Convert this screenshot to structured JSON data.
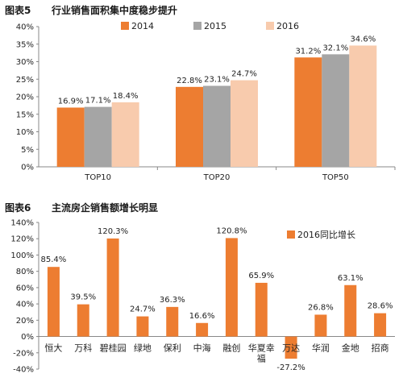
{
  "figures": [
    {
      "number": "图表5",
      "title": "行业销售面积集中度稳步提升"
    },
    {
      "number": "图表6",
      "title": "主流房企销售额增长明显"
    }
  ],
  "chart_data": [
    {
      "type": "bar",
      "categories": [
        "TOP10",
        "TOP20",
        "TOP50"
      ],
      "series": [
        {
          "name": "2014",
          "color": "#ed7d31",
          "values": [
            16.9,
            22.8,
            31.2
          ],
          "labels": [
            "16.9%",
            "22.8%",
            "31.2%"
          ]
        },
        {
          "name": "2015",
          "color": "#a5a5a5",
          "values": [
            17.1,
            23.1,
            32.1
          ],
          "labels": [
            "17.1%",
            "23.1%",
            "32.1%"
          ]
        },
        {
          "name": "2016",
          "color": "#f8cbad",
          "values": [
            18.4,
            24.7,
            34.6
          ],
          "labels": [
            "18.4%",
            "24.7%",
            "34.6%"
          ]
        }
      ],
      "ylim": [
        0,
        40
      ],
      "yticks": [
        "0%",
        "5%",
        "10%",
        "15%",
        "20%",
        "25%",
        "30%",
        "35%",
        "40%"
      ],
      "legend_position": "top-center",
      "grid": false
    },
    {
      "type": "bar",
      "categories": [
        "恒大",
        "万科",
        "碧桂园",
        "绿地",
        "保利",
        "中海",
        "融创",
        "华夏幸福",
        "万达",
        "华润",
        "金地",
        "招商"
      ],
      "series": [
        {
          "name": "2016同比增长",
          "color": "#ed7d31",
          "values": [
            85.4,
            39.5,
            120.3,
            24.7,
            36.3,
            16.6,
            120.8,
            65.9,
            -27.2,
            26.8,
            63.1,
            28.6
          ],
          "labels": [
            "85.4%",
            "39.5%",
            "120.3%",
            "24.7%",
            "36.3%",
            "16.6%",
            "120.8%",
            "65.9%",
            "-27.2%",
            "26.8%",
            "63.1%",
            "28.6%"
          ]
        }
      ],
      "ylim": [
        -40,
        140
      ],
      "yticks": [
        "-40%",
        "-20%",
        "0%",
        "20%",
        "40%",
        "60%",
        "80%",
        "100%",
        "120%",
        "140%"
      ],
      "legend_position": "top-right",
      "grid": false
    }
  ]
}
